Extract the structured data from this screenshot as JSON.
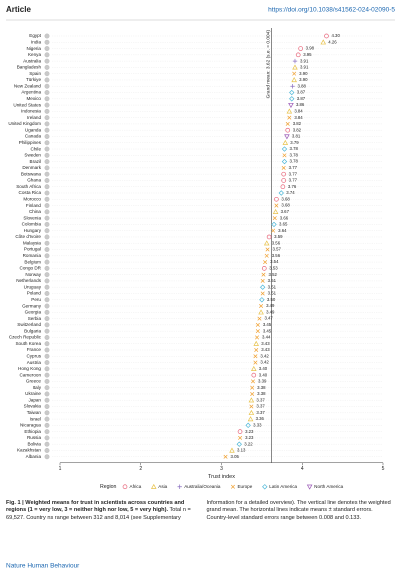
{
  "header": {
    "section": "Article",
    "doi": "https://doi.org/10.1038/s41562-024-02090-5"
  },
  "chart_data": {
    "type": "dot",
    "categories": [
      "Egypt",
      "India",
      "Nigeria",
      "Kenya",
      "Australia",
      "Bangladesh",
      "Spain",
      "Türkiye",
      "New Zealand",
      "Argentina",
      "Mexico",
      "United States",
      "Indonesia",
      "Ireland",
      "United Kingdom",
      "Uganda",
      "Canada",
      "Philippines",
      "Chile",
      "Sweden",
      "Brazil",
      "Denmark",
      "Botswana",
      "Ghana",
      "South Africa",
      "Costa Rica",
      "Morocco",
      "Finland",
      "China",
      "Slovenia",
      "Colombia",
      "Hungary",
      "Côte d'Ivoire",
      "Malaysia",
      "Portugal",
      "Romania",
      "Belgium",
      "Congo DR",
      "Norway",
      "Netherlands",
      "Uruguay",
      "Poland",
      "Peru",
      "Germany",
      "Georgia",
      "Serbia",
      "Switzerland",
      "Bulgaria",
      "Czech Republic",
      "South Korea",
      "France",
      "Cyprus",
      "Austria",
      "Hong Kong",
      "Cameroon",
      "Greece",
      "Italy",
      "Ukraine",
      "Japan",
      "Slovakia",
      "Taiwan",
      "Israel",
      "Nicaragua",
      "Ethiopia",
      "Russia",
      "Bolivia",
      "Kazakhstan",
      "Albania"
    ],
    "series": [
      {
        "name": "Africa",
        "color": "#e8657a",
        "marker": "circle",
        "values": [
          4.3,
          null,
          3.98,
          3.95,
          null,
          null,
          null,
          null,
          null,
          null,
          null,
          null,
          null,
          null,
          null,
          3.82,
          null,
          null,
          null,
          null,
          null,
          null,
          3.77,
          3.77,
          3.76,
          null,
          3.68,
          null,
          null,
          null,
          null,
          null,
          3.59,
          null,
          null,
          null,
          null,
          3.53,
          null,
          null,
          null,
          null,
          null,
          null,
          null,
          null,
          null,
          null,
          null,
          null,
          null,
          null,
          null,
          null,
          3.4,
          null,
          null,
          null,
          null,
          null,
          null,
          null,
          null,
          3.23,
          null,
          null,
          null,
          null
        ],
        "value_labels": [
          "4.30",
          null,
          "3.98",
          "3.95",
          null,
          null,
          null,
          null,
          null,
          null,
          null,
          null,
          null,
          null,
          null,
          "3.82",
          null,
          null,
          null,
          null,
          null,
          null,
          "3.77",
          "3.77",
          "3.76",
          null,
          "3.68",
          null,
          null,
          null,
          null,
          null,
          "3.59",
          null,
          null,
          null,
          null,
          "3.53",
          null,
          null,
          null,
          null,
          null,
          null,
          null,
          null,
          null,
          null,
          null,
          null,
          null,
          null,
          null,
          null,
          "3.40",
          null,
          null,
          null,
          null,
          null,
          null,
          null,
          null,
          "3.23",
          null,
          null,
          null,
          null
        ]
      },
      {
        "name": "Asia",
        "color": "#e8c24a",
        "marker": "triangle-up",
        "values": [
          null,
          4.26,
          null,
          null,
          null,
          3.91,
          null,
          3.9,
          null,
          null,
          null,
          null,
          3.84,
          null,
          null,
          null,
          null,
          3.79,
          null,
          null,
          null,
          null,
          null,
          null,
          null,
          null,
          null,
          null,
          3.67,
          null,
          null,
          null,
          null,
          3.56,
          null,
          null,
          null,
          null,
          null,
          null,
          null,
          null,
          null,
          null,
          3.49,
          null,
          null,
          null,
          null,
          3.43,
          null,
          null,
          null,
          3.4,
          null,
          null,
          null,
          null,
          3.37,
          null,
          3.37,
          3.36,
          null,
          null,
          null,
          null,
          3.13,
          null
        ],
        "value_labels": [
          null,
          "4.26",
          null,
          null,
          null,
          "3.91",
          null,
          "3.90",
          null,
          null,
          null,
          null,
          "3.84",
          null,
          null,
          null,
          null,
          "3.79",
          null,
          null,
          null,
          null,
          null,
          null,
          null,
          null,
          null,
          null,
          "3.67",
          null,
          null,
          null,
          null,
          "3.56",
          null,
          null,
          null,
          null,
          null,
          null,
          null,
          null,
          null,
          null,
          "3.49",
          null,
          null,
          null,
          null,
          "3.43",
          null,
          null,
          null,
          "3.40",
          null,
          null,
          null,
          null,
          "3.37",
          null,
          "3.37",
          "3.36",
          null,
          null,
          null,
          null,
          "3.13",
          null
        ]
      },
      {
        "name": "Australia/Oceania",
        "color": "#8a6fc0",
        "marker": "plus",
        "values": [
          null,
          null,
          null,
          null,
          3.91,
          null,
          null,
          null,
          3.88,
          null,
          null,
          null,
          null,
          null,
          null,
          null,
          null,
          null,
          null,
          null,
          null,
          null,
          null,
          null,
          null,
          null,
          null,
          null,
          null,
          null,
          null,
          null,
          null,
          null,
          null,
          null,
          null,
          null,
          null,
          null,
          null,
          null,
          null,
          null,
          null,
          null,
          null,
          null,
          null,
          null,
          null,
          null,
          null,
          null,
          null,
          null,
          null,
          null,
          null,
          null,
          null,
          null,
          null,
          null,
          null,
          null,
          null,
          null
        ],
        "value_labels": [
          null,
          null,
          null,
          null,
          "3.91",
          null,
          null,
          null,
          "3.88",
          null,
          null,
          null,
          null,
          null,
          null,
          null,
          null,
          null,
          null,
          null,
          null,
          null,
          null,
          null,
          null,
          null,
          null,
          null,
          null,
          null,
          null,
          null,
          null,
          null,
          null,
          null,
          null,
          null,
          null,
          null,
          null,
          null,
          null,
          null,
          null,
          null,
          null,
          null,
          null,
          null,
          null,
          null,
          null,
          null,
          null,
          null,
          null,
          null,
          null,
          null,
          null,
          null,
          null,
          null,
          null,
          null,
          null,
          null
        ]
      },
      {
        "name": "Europe",
        "color": "#f0a030",
        "marker": "cross",
        "values": [
          null,
          null,
          null,
          null,
          null,
          null,
          3.9,
          null,
          null,
          null,
          null,
          null,
          null,
          3.84,
          3.82,
          null,
          null,
          null,
          null,
          3.78,
          null,
          3.77,
          null,
          null,
          null,
          null,
          null,
          3.68,
          null,
          3.66,
          null,
          3.64,
          null,
          null,
          3.57,
          3.56,
          3.54,
          null,
          3.52,
          3.51,
          null,
          3.51,
          null,
          3.49,
          null,
          3.47,
          3.45,
          3.45,
          3.44,
          null,
          3.43,
          3.42,
          3.42,
          null,
          null,
          3.39,
          3.38,
          3.38,
          null,
          3.37,
          null,
          null,
          null,
          null,
          3.23,
          null,
          null,
          3.05
        ],
        "value_labels": [
          null,
          null,
          null,
          null,
          null,
          null,
          "3.90",
          null,
          null,
          null,
          null,
          null,
          null,
          "3.84",
          "3.82",
          null,
          null,
          null,
          null,
          "3.78",
          null,
          "3.77",
          null,
          null,
          null,
          null,
          null,
          "3.68",
          null,
          "3.66",
          null,
          "3.64",
          null,
          null,
          "3.57",
          "3.56",
          "3.54",
          null,
          "3.52",
          "3.51",
          null,
          "3.51",
          null,
          "3.49",
          null,
          "3.47",
          "3.45",
          "3.45",
          "3.44",
          null,
          "3.43",
          "3.42",
          "3.42",
          null,
          null,
          "3.39",
          "3.38",
          "3.38",
          null,
          "3.37",
          null,
          null,
          null,
          null,
          "3.23",
          null,
          null,
          "3.05"
        ]
      },
      {
        "name": "Latin America",
        "color": "#4fb8d8",
        "marker": "diamond",
        "values": [
          null,
          null,
          null,
          null,
          null,
          null,
          null,
          null,
          null,
          3.87,
          3.87,
          null,
          null,
          null,
          null,
          null,
          null,
          null,
          3.78,
          null,
          3.78,
          null,
          null,
          null,
          null,
          3.74,
          null,
          null,
          null,
          null,
          3.65,
          null,
          null,
          null,
          null,
          null,
          null,
          null,
          null,
          null,
          3.51,
          null,
          3.5,
          null,
          null,
          null,
          null,
          null,
          null,
          null,
          null,
          null,
          null,
          null,
          null,
          null,
          null,
          null,
          null,
          null,
          null,
          null,
          3.33,
          null,
          null,
          3.22,
          null,
          null
        ],
        "value_labels": [
          null,
          null,
          null,
          null,
          null,
          null,
          null,
          null,
          null,
          "3.87",
          "3.87",
          null,
          null,
          null,
          null,
          null,
          null,
          null,
          "3.78",
          null,
          "3.78",
          null,
          null,
          null,
          null,
          "3.74",
          null,
          null,
          null,
          null,
          "3.65",
          null,
          null,
          null,
          null,
          null,
          null,
          null,
          null,
          null,
          "3.51",
          null,
          "3.50",
          null,
          null,
          null,
          null,
          null,
          null,
          null,
          null,
          null,
          null,
          null,
          null,
          null,
          null,
          null,
          null,
          null,
          null,
          null,
          "3.33",
          null,
          null,
          "3.22",
          null,
          null
        ]
      },
      {
        "name": "North America",
        "color": "#9b59b6",
        "marker": "triangle-down",
        "values": [
          null,
          null,
          null,
          null,
          null,
          null,
          null,
          null,
          null,
          null,
          null,
          3.86,
          null,
          null,
          null,
          null,
          3.81,
          null,
          null,
          null,
          null,
          null,
          null,
          null,
          null,
          null,
          null,
          null,
          null,
          null,
          null,
          null,
          null,
          null,
          null,
          null,
          null,
          null,
          null,
          null,
          null,
          null,
          null,
          null,
          null,
          null,
          null,
          null,
          null,
          null,
          null,
          null,
          null,
          null,
          null,
          null,
          null,
          null,
          null,
          null,
          null,
          null,
          null,
          null,
          null,
          null,
          null,
          null
        ],
        "value_labels": [
          null,
          null,
          null,
          null,
          null,
          null,
          null,
          null,
          null,
          null,
          null,
          "3.86",
          null,
          null,
          null,
          null,
          "3.81",
          null,
          null,
          null,
          null,
          null,
          null,
          null,
          null,
          null,
          null,
          null,
          null,
          null,
          null,
          null,
          null,
          null,
          null,
          null,
          null,
          null,
          null,
          null,
          null,
          null,
          null,
          null,
          null,
          null,
          null,
          null,
          null,
          null,
          null,
          null,
          null,
          null,
          null,
          null,
          null,
          null,
          null,
          null,
          null,
          null,
          null,
          null,
          null,
          null,
          null,
          null
        ]
      }
    ],
    "xlabel": "Trust index",
    "xlim": [
      1,
      5
    ],
    "xticks": [
      1,
      2,
      3,
      4,
      5
    ],
    "grand_mean": 3.62,
    "grand_mean_label": "Grand mean: 3.62 (s.e. = 0.004)",
    "legend_title": "Region",
    "legend_position": "bottom"
  },
  "caption": {
    "title": "Fig. 1 | Weighted means for trust in scientists across countries and regions (1 = very low, 3 = neither high nor low, 5 = very high).",
    "text": "Total n = 69,527. Country ns range between 312 and 8,014 (see Supplementary Information for a detailed overview). The vertical line denotes the weighted grand mean. The horizontal lines indicate means ± standard errors. Country-level standard errors range between 0.008 and 0.133."
  },
  "footer": "Nature Human Behaviour"
}
